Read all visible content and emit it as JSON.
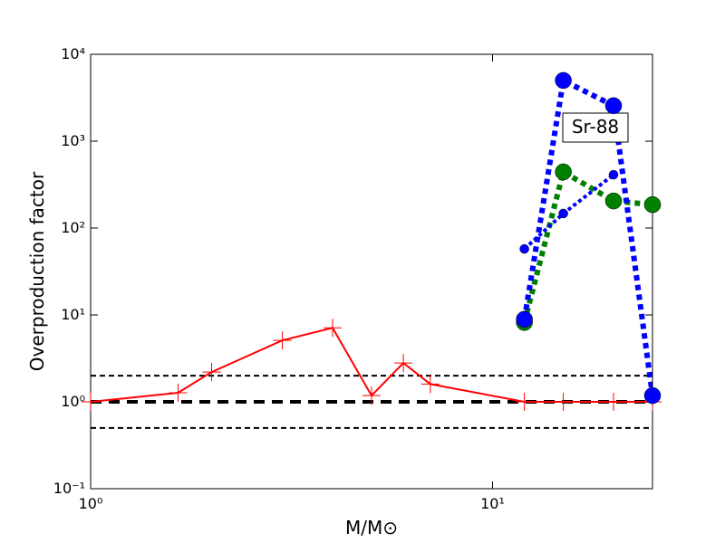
{
  "chart_data": {
    "type": "line",
    "xlabel": "M/M⊙",
    "ylabel": "Overproduction factor",
    "annotation": "Sr-88",
    "xscale": "log",
    "yscale": "log",
    "xlim": [
      1,
      25
    ],
    "ylim": [
      0.1,
      10000
    ],
    "xticks": [
      {
        "value": 1,
        "label": "10⁰"
      },
      {
        "value": 10,
        "label": "10¹"
      }
    ],
    "yticks": [
      {
        "value": 0.1,
        "label": "10⁻¹"
      },
      {
        "value": 1,
        "label": "10⁰"
      },
      {
        "value": 10,
        "label": "10¹"
      },
      {
        "value": 100,
        "label": "10²"
      },
      {
        "value": 1000,
        "label": "10³"
      },
      {
        "value": 10000,
        "label": "10⁴"
      }
    ],
    "reference_lines": [
      {
        "value": 2,
        "color": "#000000",
        "width": 2
      },
      {
        "value": 1,
        "color": "#000000",
        "width": 4
      },
      {
        "value": 0.5,
        "color": "#000000",
        "width": 2
      }
    ],
    "series": [
      {
        "color": "#ff0000",
        "linestyle": "solid",
        "linewidth": 2,
        "marker": "+",
        "markersize": 10,
        "x": [
          1,
          1.65,
          2,
          3,
          4,
          5,
          6,
          7,
          12,
          15,
          20,
          25
        ],
        "values": [
          1.0,
          1.27,
          2.2,
          5.1,
          7.1,
          1.18,
          2.8,
          1.6,
          1.0,
          1.0,
          1.0,
          1.0
        ]
      },
      {
        "color": "#008000",
        "linestyle": "dotted",
        "linewidth": 6,
        "marker": "o",
        "markersize": 9,
        "x": [
          12,
          15,
          20,
          25
        ],
        "values": [
          8.2,
          443,
          205,
          186
        ]
      },
      {
        "color": "#0000ff",
        "linestyle": "dotted",
        "linewidth": 4,
        "marker": "o",
        "markersize": 5,
        "x": [
          12,
          15,
          20
        ],
        "values": [
          57.5,
          147,
          411
        ]
      },
      {
        "color": "#0000ff",
        "linestyle": "dotted",
        "linewidth": 6,
        "marker": "o",
        "markersize": 9,
        "x": [
          12,
          15,
          20,
          25
        ],
        "values": [
          8.9,
          5000,
          2560,
          1.18
        ]
      }
    ]
  }
}
